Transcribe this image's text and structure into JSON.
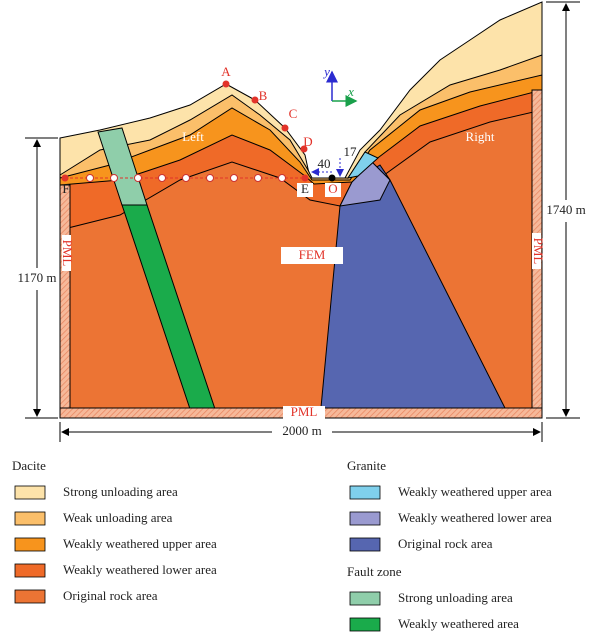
{
  "diagram": {
    "points": {
      "a": "A",
      "b": "B",
      "c": "C",
      "d": "D",
      "e": "E",
      "f": "F",
      "o": "O"
    },
    "regions": {
      "left": "Left",
      "right": "Right"
    },
    "axes": {
      "y": "y",
      "x": "x"
    },
    "offsets": {
      "horizontal": "40",
      "vertical": "17"
    },
    "labels": {
      "fem": "FEM",
      "pml_left": "PML",
      "pml_right": "PML",
      "pml_bottom": "PML"
    },
    "dimensions": {
      "left_height": "1170 m",
      "right_height": "1740 m",
      "width": "2000 m"
    }
  },
  "legend": {
    "groups": [
      {
        "title": "Dacite",
        "items": [
          "Strong unloading area",
          "Weak unloading area",
          "Weakly weathered upper area",
          "Weakly weathered lower area",
          "Original rock area"
        ]
      },
      {
        "title": "Granite",
        "items": [
          "Weakly weathered upper area",
          "Weakly weathered lower area",
          "Original rock area"
        ]
      },
      {
        "title": "Fault zone",
        "items": [
          "Strong unloading area",
          "Weakly weathered area"
        ]
      }
    ]
  }
}
